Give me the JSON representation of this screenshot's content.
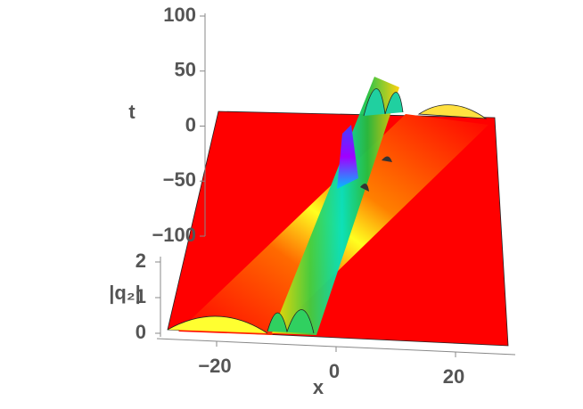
{
  "chart_data": {
    "type": "surface",
    "x_label": "x",
    "y_label": "t",
    "z_label": "|q₂|",
    "xlim": [
      -30,
      30
    ],
    "ylim": [
      -100,
      100
    ],
    "xticks": [
      {
        "value": -20,
        "label": "−20"
      },
      0,
      20
    ],
    "yticks": [
      100,
      50,
      0,
      {
        "value": -50,
        "label": "−50"
      },
      {
        "value": -100,
        "label": "−100"
      }
    ],
    "zticks": [
      0,
      1,
      2
    ]
  }
}
